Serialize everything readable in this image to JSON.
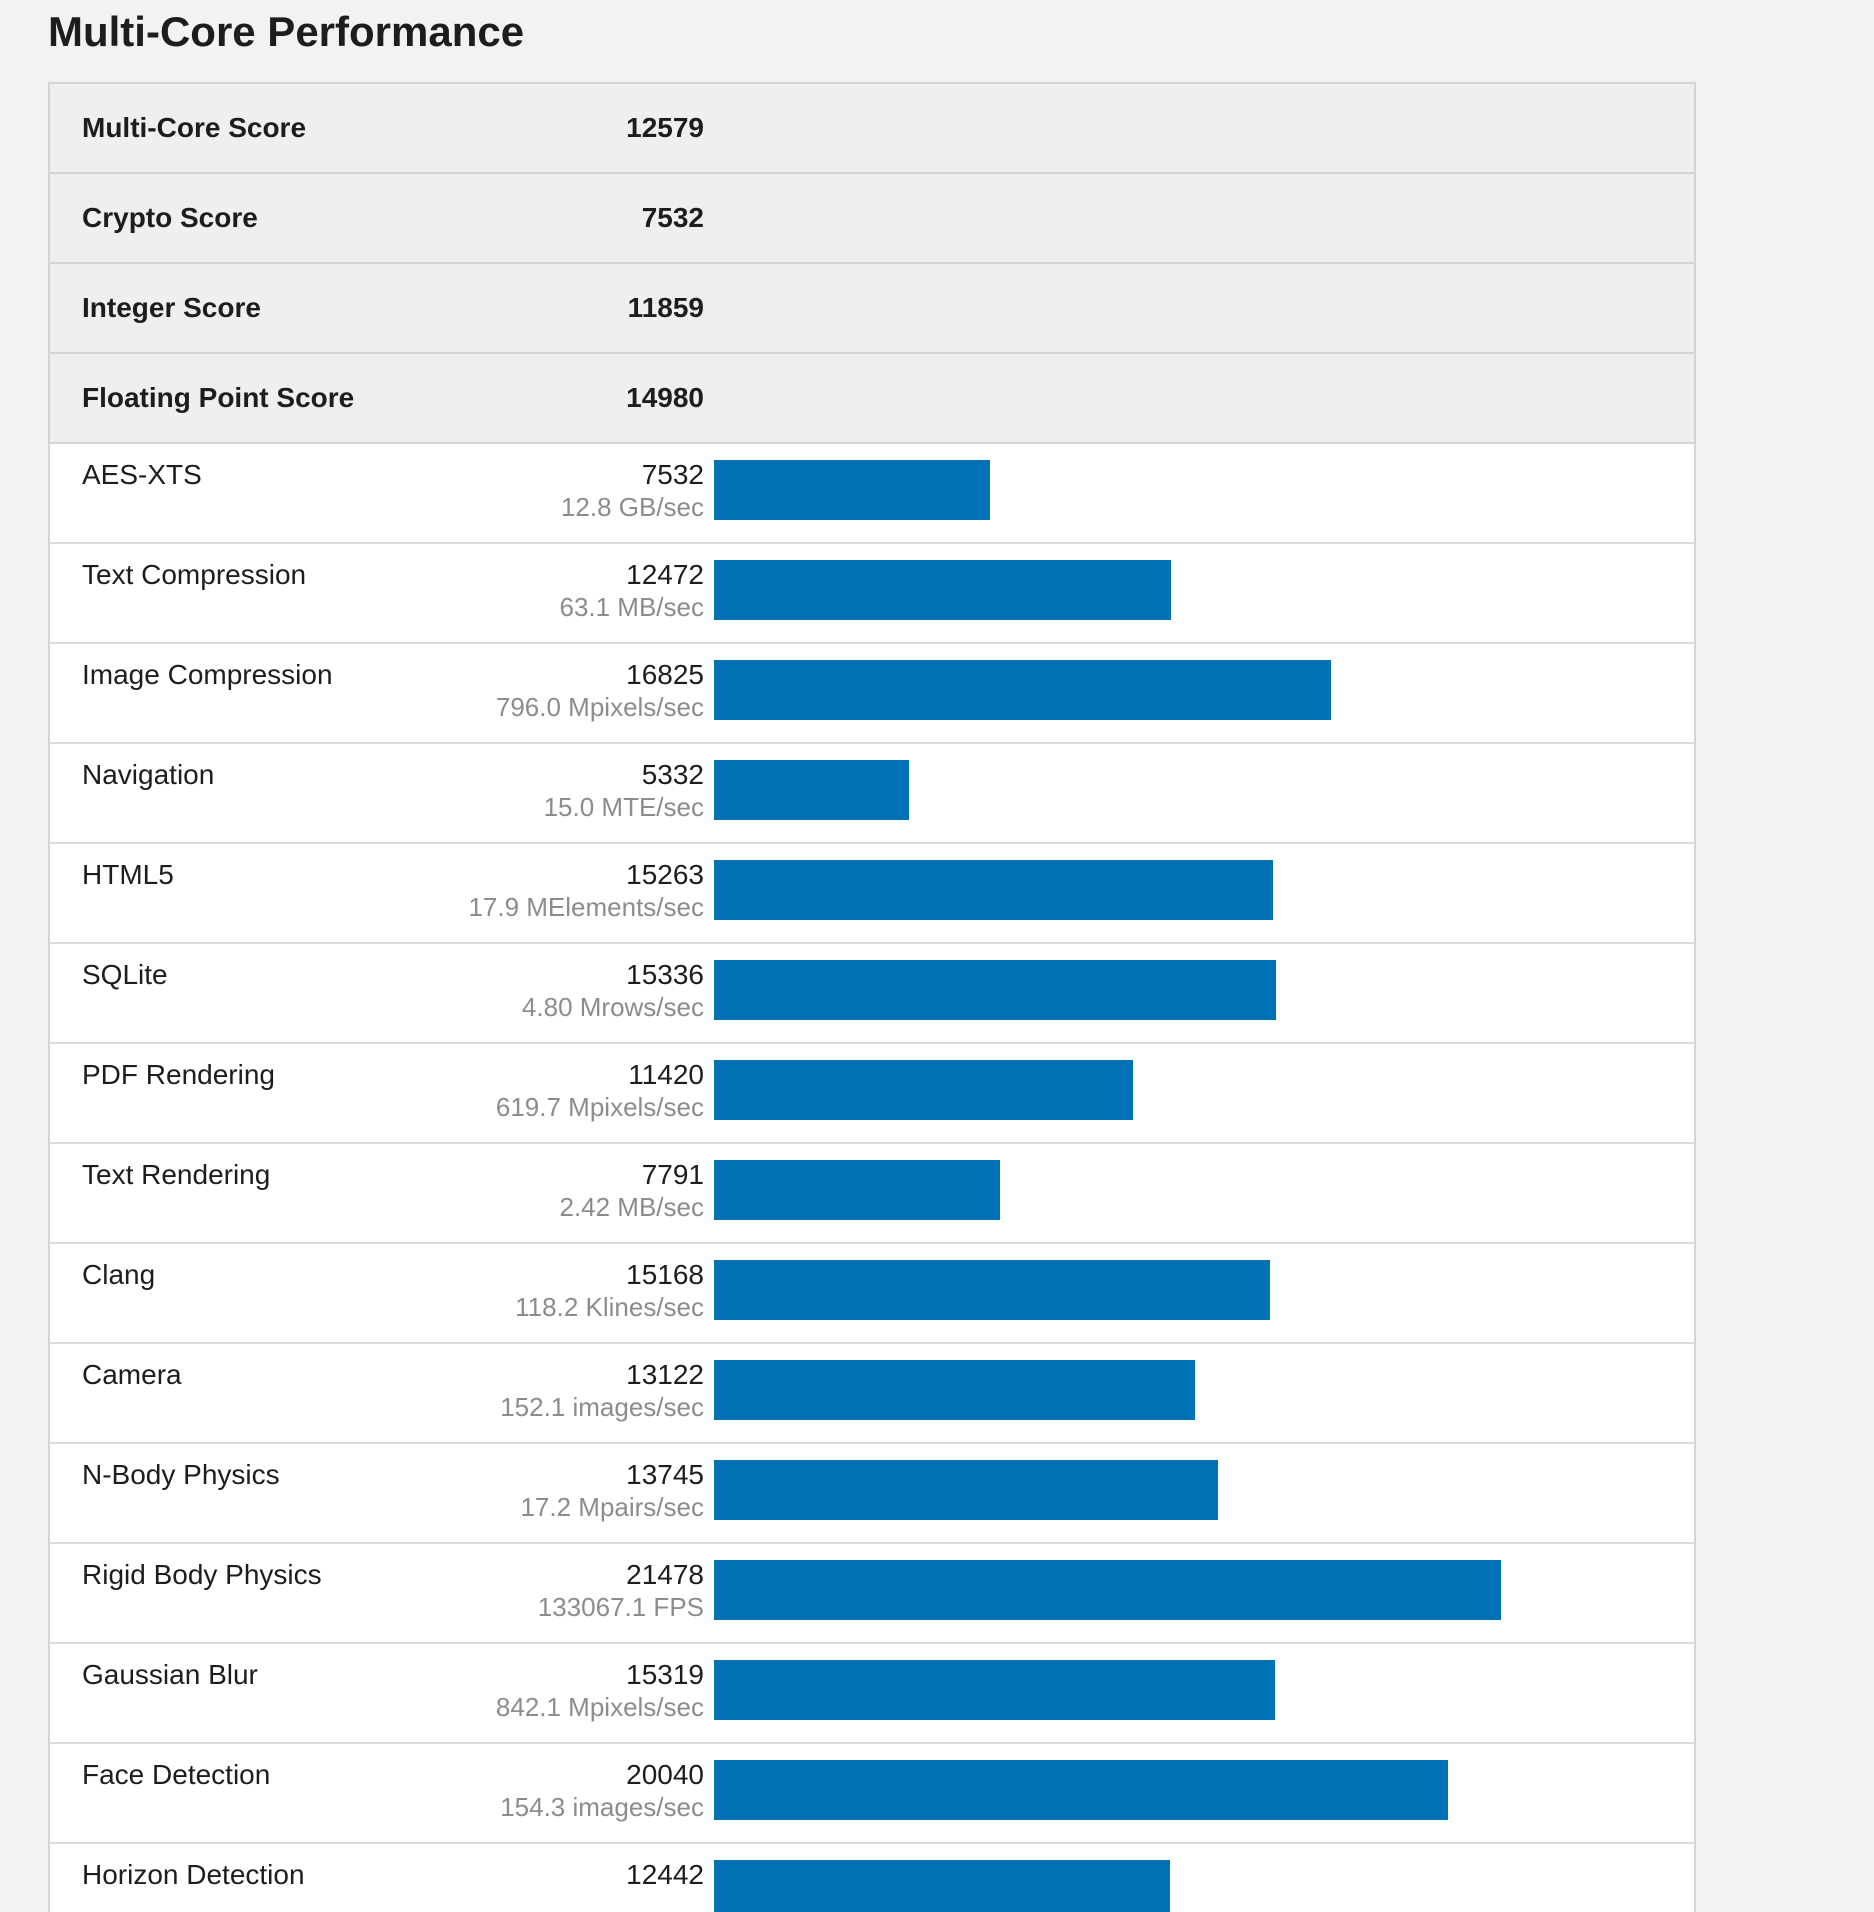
{
  "page": {
    "title": "Multi-Core Performance"
  },
  "colors": {
    "bar": "#0172b6",
    "summary_bg": "#efefef",
    "detail_text": "#8c8c8c"
  },
  "summary": [
    {
      "label": "Multi-Core Score",
      "score": "12579"
    },
    {
      "label": "Crypto Score",
      "score": "7532"
    },
    {
      "label": "Integer Score",
      "score": "11859"
    },
    {
      "label": "Floating Point Score",
      "score": "14980"
    }
  ],
  "benchmarks": [
    {
      "label": "AES-XTS",
      "score": "7532",
      "detail": "12.8 GB/sec"
    },
    {
      "label": "Text Compression",
      "score": "12472",
      "detail": "63.1 MB/sec"
    },
    {
      "label": "Image Compression",
      "score": "16825",
      "detail": "796.0 Mpixels/sec"
    },
    {
      "label": "Navigation",
      "score": "5332",
      "detail": "15.0 MTE/sec"
    },
    {
      "label": "HTML5",
      "score": "15263",
      "detail": "17.9 MElements/sec"
    },
    {
      "label": "SQLite",
      "score": "15336",
      "detail": "4.80 Mrows/sec"
    },
    {
      "label": "PDF Rendering",
      "score": "11420",
      "detail": "619.7 Mpixels/sec"
    },
    {
      "label": "Text Rendering",
      "score": "7791",
      "detail": "2.42 MB/sec"
    },
    {
      "label": "Clang",
      "score": "15168",
      "detail": "118.2 Klines/sec"
    },
    {
      "label": "Camera",
      "score": "13122",
      "detail": "152.1 images/sec"
    },
    {
      "label": "N-Body Physics",
      "score": "13745",
      "detail": "17.2 Mpairs/sec"
    },
    {
      "label": "Rigid Body Physics",
      "score": "21478",
      "detail": "133067.1 FPS"
    },
    {
      "label": "Gaussian Blur",
      "score": "15319",
      "detail": "842.1 Mpixels/sec"
    },
    {
      "label": "Face Detection",
      "score": "20040",
      "detail": "154.3 images/sec"
    },
    {
      "label": "Horizon Detection",
      "score": "12442",
      "detail": ""
    }
  ]
}
